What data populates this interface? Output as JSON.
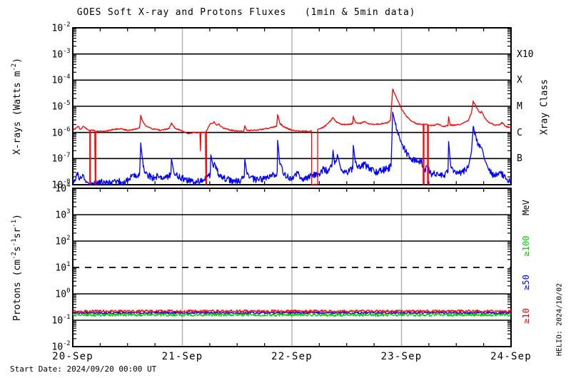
{
  "title": "GOES Soft X-ray and Protons Fluxes   (1min & 5min data)",
  "footer": {
    "start_date": "Start Date: 2024/09/20 00:00 UT",
    "credit": "HELIO: 2024/10/02"
  },
  "colors": {
    "xray_long": "#ff0000",
    "xray_short": "#0000ff",
    "protons_ge10": "#ff0000",
    "protons_ge50": "#0000ff",
    "protons_ge100": "#00cc00",
    "grid": "#000000",
    "day_gridline": "#b3b3b3",
    "background": "#ffffff"
  },
  "chart_data": [
    {
      "type": "line",
      "panel": "xray-flux",
      "ylabel_segments": [
        {
          "t": "X-rays (Watts m"
        },
        {
          "sup": "-2"
        },
        {
          "t": ")"
        }
      ],
      "right_axis_label": "Xray Class",
      "y_log_range": [
        -8,
        -2
      ],
      "y_tick_exponents": [
        -2,
        -3,
        -4,
        -5,
        -6,
        -7,
        -8
      ],
      "x_tick_labels": [
        "20-Sep",
        "21-Sep",
        "22-Sep",
        "23-Sep",
        "24-Sep"
      ],
      "x_minor_tick_hours": 6,
      "grid": "solid horizontal line each decade, gray vertical line each day",
      "right_labels": [
        {
          "text": "X10",
          "at_exp": -3
        },
        {
          "text": "X",
          "at_exp": -4
        },
        {
          "text": "M",
          "at_exp": -5
        },
        {
          "text": "C",
          "at_exp": -6
        },
        {
          "text": "B",
          "at_exp": -7
        }
      ],
      "series": [
        {
          "name": "xray-short-wave",
          "color": "#0000ff",
          "noise_log": 0.13,
          "points": [
            [
              0.0,
              1.2e-08
            ],
            [
              0.03,
              2e-08
            ],
            [
              0.045,
              3e-08
            ],
            [
              0.06,
              1.5e-08
            ],
            [
              0.09,
              2.5e-08
            ],
            [
              0.12,
              1.2e-08
            ],
            [
              0.18,
              1.1e-08
            ],
            [
              0.25,
              1.3e-08
            ],
            [
              0.32,
              1.1e-08
            ],
            [
              0.4,
              1.4e-08
            ],
            [
              0.48,
              1.2e-08
            ],
            [
              0.55,
              2.5e-08
            ],
            [
              0.58,
              1.8e-08
            ],
            [
              0.61,
              2.5e-08
            ],
            [
              0.62,
              4e-07
            ],
            [
              0.635,
              1e-07
            ],
            [
              0.65,
              4e-08
            ],
            [
              0.68,
              2.5e-08
            ],
            [
              0.73,
              1.8e-08
            ],
            [
              0.8,
              2.2e-08
            ],
            [
              0.85,
              1.8e-08
            ],
            [
              0.895,
              2.5e-08
            ],
            [
              0.9,
              1e-07
            ],
            [
              0.92,
              3.5e-08
            ],
            [
              0.96,
              2e-08
            ],
            [
              1.0,
              1.8e-08
            ],
            [
              1.06,
              1.4e-08
            ],
            [
              1.13,
              1.3e-08
            ],
            [
              1.2,
              1.6e-08
            ],
            [
              1.255,
              2.5e-08
            ],
            [
              1.26,
              1.4e-07
            ],
            [
              1.28,
              5e-08
            ],
            [
              1.3,
              6e-08
            ],
            [
              1.33,
              2.5e-08
            ],
            [
              1.38,
              1.8e-08
            ],
            [
              1.45,
              1.4e-08
            ],
            [
              1.52,
              1.3e-08
            ],
            [
              1.565,
              2e-08
            ],
            [
              1.57,
              1e-07
            ],
            [
              1.59,
              2.5e-08
            ],
            [
              1.66,
              1.5e-08
            ],
            [
              1.74,
              1.6e-08
            ],
            [
              1.81,
              2e-08
            ],
            [
              1.865,
              3e-08
            ],
            [
              1.87,
              5e-07
            ],
            [
              1.89,
              6e-08
            ],
            [
              1.93,
              2.5e-08
            ],
            [
              2.0,
              1.6e-08
            ],
            [
              2.05,
              2.8e-08
            ],
            [
              2.09,
              1.6e-08
            ],
            [
              2.15,
              1.8e-08
            ],
            [
              2.19,
              2.5e-08
            ],
            [
              2.23,
              2.2e-08
            ],
            [
              2.29,
              4e-08
            ],
            [
              2.33,
              3e-08
            ],
            [
              2.365,
              5e-08
            ],
            [
              2.375,
              2.1e-07
            ],
            [
              2.39,
              6e-08
            ],
            [
              2.42,
              1.2e-07
            ],
            [
              2.45,
              3.5e-08
            ],
            [
              2.5,
              3e-08
            ],
            [
              2.555,
              4e-08
            ],
            [
              2.56,
              3.2e-07
            ],
            [
              2.58,
              7e-08
            ],
            [
              2.62,
              4e-08
            ],
            [
              2.66,
              6e-08
            ],
            [
              2.7,
              4.5e-08
            ],
            [
              2.76,
              3e-08
            ],
            [
              2.82,
              3.5e-08
            ],
            [
              2.87,
              4e-08
            ],
            [
              2.905,
              5e-08
            ],
            [
              2.92,
              6e-06
            ],
            [
              2.945,
              2e-06
            ],
            [
              2.97,
              8e-07
            ],
            [
              3.0,
              4e-07
            ],
            [
              3.04,
              1.8e-07
            ],
            [
              3.08,
              1.1e-07
            ],
            [
              3.13,
              8e-08
            ],
            [
              3.18,
              8e-08
            ],
            [
              3.199,
              5e-08
            ],
            [
              3.199,
              1e-08
            ],
            [
              3.205,
              1e-08
            ],
            [
              3.205,
              3e-08
            ],
            [
              3.24,
              5e-08
            ],
            [
              3.27,
              2.5e-08
            ],
            [
              3.33,
              2.8e-08
            ],
            [
              3.38,
              2.2e-08
            ],
            [
              3.425,
              3e-08
            ],
            [
              3.43,
              4.5e-07
            ],
            [
              3.45,
              5e-08
            ],
            [
              3.5,
              2.5e-08
            ],
            [
              3.56,
              3e-08
            ],
            [
              3.61,
              4.5e-08
            ],
            [
              3.64,
              2e-07
            ],
            [
              3.655,
              1.7e-06
            ],
            [
              3.68,
              7e-07
            ],
            [
              3.7,
              3.5e-07
            ],
            [
              3.735,
              2.5e-07
            ],
            [
              3.76,
              9e-08
            ],
            [
              3.8,
              3.5e-08
            ],
            [
              3.84,
              2.2e-08
            ],
            [
              3.9,
              3e-08
            ],
            [
              3.95,
              1.8e-08
            ],
            [
              4.0,
              1.3e-08
            ]
          ]
        },
        {
          "name": "xray-long-wave",
          "color": "#ff0000",
          "noise_log": 0.025,
          "points": [
            [
              0.0,
              1.2e-06
            ],
            [
              0.03,
              1.5e-06
            ],
            [
              0.05,
              1.7e-06
            ],
            [
              0.07,
              1.3e-06
            ],
            [
              0.1,
              1.7e-06
            ],
            [
              0.13,
              1.3e-06
            ],
            [
              0.155,
              1.2e-06
            ],
            [
              0.155,
              1e-08
            ],
            [
              0.16,
              1e-08
            ],
            [
              0.16,
              1.2e-06
            ],
            [
              0.2,
              1.2e-06
            ],
            [
              0.205,
              1e-08
            ],
            [
              0.21,
              1e-08
            ],
            [
              0.21,
              1.1e-06
            ],
            [
              0.3,
              1.1e-06
            ],
            [
              0.38,
              1.3e-06
            ],
            [
              0.44,
              1.4e-06
            ],
            [
              0.5,
              1.2e-06
            ],
            [
              0.56,
              1.3e-06
            ],
            [
              0.61,
              1.5e-06
            ],
            [
              0.62,
              4.5e-06
            ],
            [
              0.64,
              2.5e-06
            ],
            [
              0.67,
              1.7e-06
            ],
            [
              0.72,
              1.4e-06
            ],
            [
              0.8,
              1.2e-06
            ],
            [
              0.88,
              1.4e-06
            ],
            [
              0.9,
              2.3e-06
            ],
            [
              0.93,
              1.5e-06
            ],
            [
              1.0,
              1.1e-06
            ],
            [
              1.05,
              9e-07
            ],
            [
              1.1,
              1e-06
            ],
            [
              1.16,
              1e-06
            ],
            [
              1.165,
              2e-07
            ],
            [
              1.17,
              1e-06
            ],
            [
              1.21,
              1e-06
            ],
            [
              1.215,
              1e-08
            ],
            [
              1.22,
              1e-08
            ],
            [
              1.22,
              1.2e-06
            ],
            [
              1.25,
              2e-06
            ],
            [
              1.27,
              2.2e-06
            ],
            [
              1.29,
              2.6e-06
            ],
            [
              1.31,
              1.9e-06
            ],
            [
              1.33,
              2.1e-06
            ],
            [
              1.37,
              1.5e-06
            ],
            [
              1.45,
              1.2e-06
            ],
            [
              1.52,
              1.1e-06
            ],
            [
              1.56,
              1.1e-06
            ],
            [
              1.57,
              1.8e-06
            ],
            [
              1.59,
              1.2e-06
            ],
            [
              1.65,
              1.2e-06
            ],
            [
              1.72,
              1.3e-06
            ],
            [
              1.8,
              1.5e-06
            ],
            [
              1.86,
              1.7e-06
            ],
            [
              1.87,
              4.8e-06
            ],
            [
              1.89,
              2.2e-06
            ],
            [
              1.93,
              1.6e-06
            ],
            [
              2.0,
              1.2e-06
            ],
            [
              2.08,
              1.1e-06
            ],
            [
              2.15,
              1.1e-06
            ],
            [
              2.18,
              1.1e-06
            ],
            [
              2.18,
              1e-08
            ],
            [
              2.235,
              1e-08
            ],
            [
              2.235,
              1.3e-06
            ],
            [
              2.28,
              1.5e-06
            ],
            [
              2.33,
              2.2e-06
            ],
            [
              2.36,
              3e-06
            ],
            [
              2.375,
              3.7e-06
            ],
            [
              2.4,
              2.6e-06
            ],
            [
              2.44,
              2.1e-06
            ],
            [
              2.5,
              2e-06
            ],
            [
              2.555,
              2.2e-06
            ],
            [
              2.56,
              4.2e-06
            ],
            [
              2.58,
              2.4e-06
            ],
            [
              2.62,
              2.2e-06
            ],
            [
              2.66,
              2.6e-06
            ],
            [
              2.7,
              2.2e-06
            ],
            [
              2.76,
              2e-06
            ],
            [
              2.83,
              2.2e-06
            ],
            [
              2.88,
              2.4e-06
            ],
            [
              2.9,
              3e-06
            ],
            [
              2.92,
              4.5e-05
            ],
            [
              2.94,
              3e-05
            ],
            [
              2.97,
              1.5e-05
            ],
            [
              3.0,
              8e-06
            ],
            [
              3.04,
              4.5e-06
            ],
            [
              3.09,
              2.8e-06
            ],
            [
              3.14,
              2.1e-06
            ],
            [
              3.199,
              2e-06
            ],
            [
              3.199,
              1e-08
            ],
            [
              3.205,
              1e-08
            ],
            [
              3.205,
              2.1e-06
            ],
            [
              3.238,
              2e-06
            ],
            [
              3.238,
              1e-08
            ],
            [
              3.245,
              1e-08
            ],
            [
              3.245,
              1.9e-06
            ],
            [
              3.3,
              1.8e-06
            ],
            [
              3.33,
              2.1e-06
            ],
            [
              3.38,
              1.7e-06
            ],
            [
              3.425,
              1.8e-06
            ],
            [
              3.43,
              4e-06
            ],
            [
              3.445,
              1.9e-06
            ],
            [
              3.5,
              1.9e-06
            ],
            [
              3.56,
              2.2e-06
            ],
            [
              3.61,
              2.8e-06
            ],
            [
              3.64,
              6e-06
            ],
            [
              3.655,
              1.6e-05
            ],
            [
              3.67,
              1.2e-05
            ],
            [
              3.7,
              7e-06
            ],
            [
              3.72,
              5.5e-06
            ],
            [
              3.73,
              6.5e-06
            ],
            [
              3.76,
              3.5e-06
            ],
            [
              3.8,
              2.4e-06
            ],
            [
              3.85,
              1.9e-06
            ],
            [
              3.9,
              2e-06
            ],
            [
              3.92,
              2.4e-06
            ],
            [
              3.95,
              1.7e-06
            ],
            [
              4.0,
              1.5e-06
            ]
          ]
        }
      ]
    },
    {
      "type": "line",
      "panel": "proton-flux",
      "ylabel_segments": [
        {
          "t": "Protons (cm"
        },
        {
          "sup": "-2"
        },
        {
          "t": "s"
        },
        {
          "sup": "-1"
        },
        {
          "t": "sr"
        },
        {
          "sup": "-1"
        },
        {
          "t": ")"
        }
      ],
      "right_axis_unit": "MeV",
      "y_log_range": [
        -2,
        4
      ],
      "y_tick_exponents": [
        4,
        3,
        2,
        1,
        0,
        -1,
        -2
      ],
      "x_tick_labels": [
        "20-Sep",
        "21-Sep",
        "22-Sep",
        "23-Sep",
        "24-Sep"
      ],
      "x_minor_tick_hours": 6,
      "threshold_line": {
        "value": 10,
        "style": "dashed"
      },
      "grid": "solid horizontal line each decade, dashed at 10^1, gray vertical line each day",
      "right_labels": [
        {
          "text": "≥100",
          "color": "#00cc00"
        },
        {
          "text": "≥50",
          "color": "#0000ff"
        },
        {
          "text": "≥10",
          "color": "#ff0000"
        }
      ],
      "series": [
        {
          "name": "protons-ge50mev",
          "color": "#0000ff",
          "noise_log": 0.04,
          "points": [
            [
              0,
              0.19
            ],
            [
              4,
              0.19
            ]
          ]
        },
        {
          "name": "protons-ge10mev",
          "color": "#ff0000",
          "noise_log": 0.05,
          "points": [
            [
              0,
              0.22
            ],
            [
              4,
              0.22
            ]
          ]
        },
        {
          "name": "protons-ge100mev",
          "color": "#00cc00",
          "noise_log": 0.055,
          "points": [
            [
              0,
              0.16
            ],
            [
              4,
              0.16
            ]
          ]
        }
      ]
    }
  ]
}
